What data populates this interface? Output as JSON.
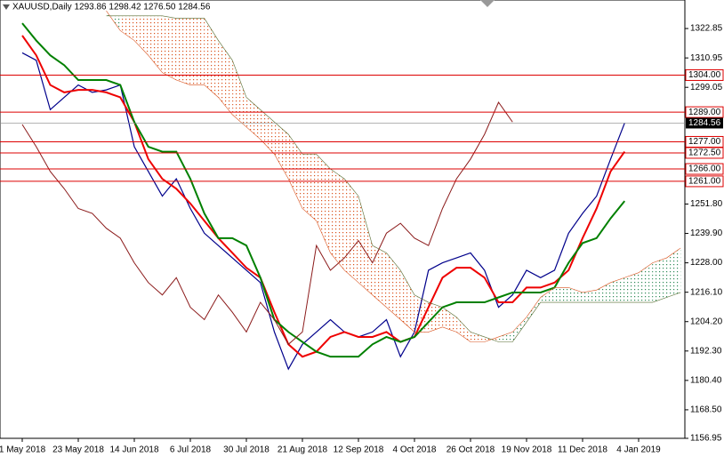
{
  "chart_data": {
    "type": "ichimoku",
    "title": "XAUUSD,Daily 1293.86 1298.42 1276.50 1284.56",
    "categories": [
      "1 May 2018",
      null,
      null,
      null,
      "23 May 2018",
      null,
      null,
      null,
      "14 Jun 2018",
      null,
      null,
      null,
      "6 Jul 2018",
      null,
      null,
      null,
      "30 Jul 2018",
      null,
      null,
      null,
      "21 Aug 2018",
      null,
      null,
      null,
      "12 Sep 2018",
      null,
      null,
      null,
      "4 Oct 2018",
      null,
      null,
      null,
      "26 Oct 2018",
      null,
      null,
      null,
      "19 Nov 2018",
      null,
      null,
      null,
      "11 Dec 2018",
      null,
      null,
      null,
      "4 Jan 2019",
      null,
      null,
      null
    ],
    "ylim": [
      1156.95,
      1334.4
    ],
    "yticks": [
      1322.85,
      1310.95,
      1299.05,
      {
        "value": 1251.8,
        "label": "1251.80"
      },
      {
        "value": 1239.9,
        "label": "1239.90"
      },
      {
        "value": 1228,
        "label": "1228.00"
      },
      {
        "value": 1216.1,
        "label": "1216.10"
      },
      {
        "value": 1204.2,
        "label": "1204.20"
      },
      {
        "value": 1192.3,
        "label": "1192.30"
      },
      {
        "value": 1180.4,
        "label": "1180.40"
      },
      {
        "value": 1168.5,
        "label": "1168.50"
      },
      1156.95
    ],
    "levels": [
      {
        "value": 1304,
        "label": "1304.00"
      },
      {
        "value": 1289,
        "label": "1289.00"
      },
      {
        "value": 1277,
        "label": "1277.00"
      },
      {
        "value": 1272.5,
        "label": "1272.50"
      },
      {
        "value": 1266,
        "label": "1266.00"
      },
      {
        "value": 1261,
        "label": "1261.00"
      }
    ],
    "level_color": "#dd0000",
    "current_price": 1284.56,
    "cloud": {
      "up_color": "#2e8b57",
      "down_color": "#d9531e"
    },
    "series": [
      {
        "color": "#00008b",
        "values": [
          1313,
          1310,
          1290,
          1295,
          1300,
          1297,
          1298,
          1300,
          1275,
          1265,
          1255,
          1262,
          1250,
          1240,
          1235,
          1230,
          1225,
          1220,
          1200,
          1185,
          1195,
          1200,
          1205,
          1200,
          1198,
          1200,
          1205,
          1190,
          1200,
          1225,
          1228,
          1230,
          1232,
          1225,
          1210,
          1215,
          1225,
          1222,
          1225,
          1240,
          1248,
          1255,
          1270,
          1284.56,
          null,
          null,
          null,
          null
        ]
      },
      {
        "color": "#ee0000",
        "values": [
          1320,
          1312,
          1300,
          1297,
          1298,
          1298,
          1297,
          1295,
          1285,
          1270,
          1262,
          1258,
          1252,
          1245,
          1238,
          1232,
          1226,
          1222,
          1208,
          1195,
          1190,
          1192,
          1198,
          1200,
          1198,
          1198,
          1200,
          1196,
          1198,
          1210,
          1222,
          1226,
          1226,
          1222,
          1212,
          1212,
          1218,
          1218,
          1220,
          1225,
          1238,
          1250,
          1265,
          1273,
          null,
          null,
          null,
          null
        ]
      },
      {
        "color": "#008000",
        "values": [
          1325,
          1318,
          1312,
          1308,
          1302,
          1302,
          1302,
          1300,
          1285,
          1275,
          1273,
          1273,
          1262,
          1248,
          1238,
          1238,
          1235,
          1222,
          1205,
          1200,
          1196,
          1192,
          1190,
          1190,
          1190,
          1195,
          1198,
          1196,
          1198,
          1204,
          1210,
          1212,
          1212,
          1212,
          1214,
          1216,
          1216,
          1216,
          1218,
          1228,
          1236,
          1238,
          1246,
          1253,
          null,
          null,
          null,
          null
        ]
      },
      {
        "color": "#8b1a1a",
        "values": [
          1284,
          1275,
          1265,
          1258,
          1250,
          1248,
          1242,
          1238,
          1228,
          1220,
          1215,
          1222,
          1210,
          1205,
          1215,
          1208,
          1200,
          1212,
          1205,
          1195,
          1200,
          1235,
          1225,
          1230,
          1237,
          1228,
          1240,
          1244,
          1238,
          1235,
          1250,
          1262,
          1270,
          1280,
          1293,
          1285,
          null,
          null,
          null,
          null,
          null,
          null,
          null,
          null,
          null,
          null,
          null,
          null
        ]
      },
      {
        "color": "#d9531e",
        "values": [
          null,
          null,
          null,
          null,
          null,
          null,
          1330,
          1322,
          1318,
          1312,
          1305,
          1302,
          1300,
          1300,
          1295,
          1288,
          1283,
          1278,
          1272,
          1262,
          1250,
          1245,
          1232,
          1225,
          1220,
          1215,
          1210,
          1205,
          1200,
          1200,
          1202,
          1200,
          1196,
          1196,
          1198,
          1200,
          1206,
          1214,
          1218,
          1218,
          1216,
          1217,
          1220,
          1222,
          1224,
          1228,
          1230,
          1234
        ]
      },
      {
        "color": "#556b2f",
        "values": [
          null,
          null,
          null,
          null,
          null,
          null,
          1328,
          1328,
          1328,
          1328,
          1328,
          1327,
          1327,
          1327,
          1318,
          1310,
          1295,
          1290,
          1285,
          1280,
          1272,
          1272,
          1266,
          1262,
          1255,
          1235,
          1232,
          1225,
          1215,
          1212,
          1210,
          1206,
          1200,
          1198,
          1196,
          1196,
          1204,
          1212,
          1212,
          1212,
          1212,
          1212,
          1212,
          1212,
          1212,
          1212,
          1214,
          1216
        ]
      }
    ]
  }
}
